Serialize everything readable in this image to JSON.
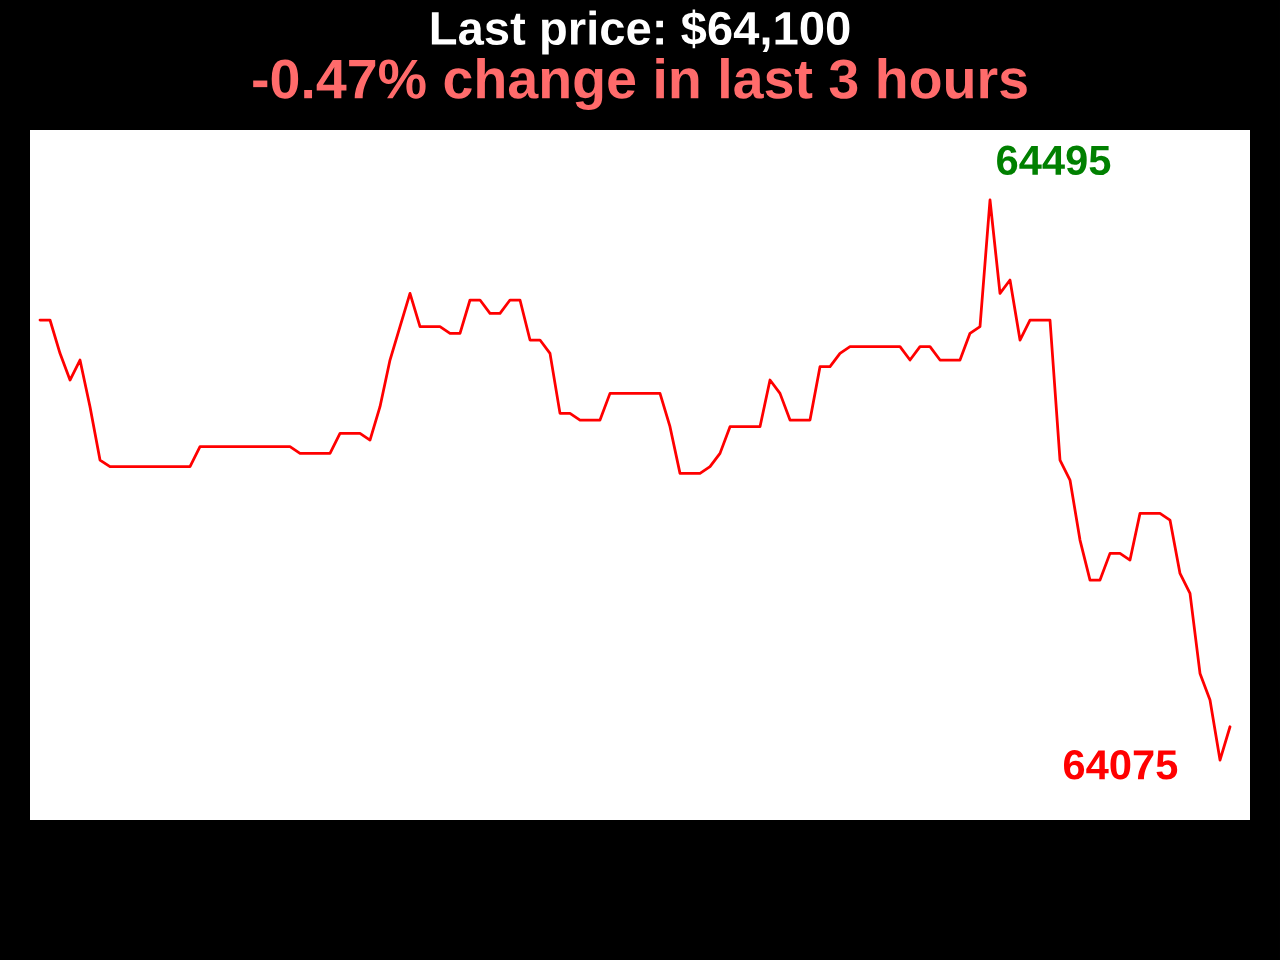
{
  "chart_data": {
    "type": "line",
    "title": "Last price: $64,100",
    "subtitle": "-0.47% change in last 3 hours",
    "categories": [
      null,
      null,
      null,
      null,
      null,
      null,
      null,
      null,
      null,
      null,
      null,
      null,
      null,
      null,
      null,
      null,
      null,
      null,
      null,
      null,
      null,
      null,
      null,
      null,
      null,
      null,
      null,
      null,
      null,
      null,
      null,
      null,
      null,
      null,
      null,
      null,
      null,
      null,
      null,
      null,
      null,
      null,
      null,
      null,
      null,
      null,
      null,
      null,
      null,
      null,
      null,
      null,
      null,
      null,
      null,
      null,
      null,
      null,
      null,
      null,
      null,
      null,
      null,
      null,
      null,
      null,
      null,
      null,
      null,
      null,
      null,
      null,
      null,
      null,
      null,
      null,
      null,
      null,
      null,
      null,
      null,
      null,
      null,
      null,
      null,
      null,
      null,
      null,
      null,
      null,
      null,
      null,
      null,
      null,
      null,
      null,
      null,
      null,
      null,
      null,
      null,
      null,
      null,
      null,
      null,
      null,
      null,
      null,
      null,
      null,
      null,
      null,
      null,
      null,
      null,
      null,
      null,
      null,
      null,
      null
    ],
    "values": [
      64405,
      64405,
      64380,
      64360,
      64375,
      64340,
      64300,
      64295,
      64295,
      64295,
      64295,
      64295,
      64295,
      64295,
      64295,
      64295,
      64310,
      64310,
      64310,
      64310,
      64310,
      64310,
      64310,
      64310,
      64310,
      64310,
      64305,
      64305,
      64305,
      64305,
      64320,
      64320,
      64320,
      64315,
      64340,
      64375,
      64400,
      64425,
      64400,
      64400,
      64400,
      64395,
      64395,
      64420,
      64420,
      64410,
      64410,
      64420,
      64420,
      64390,
      64390,
      64380,
      64335,
      64335,
      64330,
      64330,
      64330,
      64350,
      64350,
      64350,
      64350,
      64350,
      64350,
      64325,
      64290,
      64290,
      64290,
      64295,
      64305,
      64325,
      64325,
      64325,
      64325,
      64360,
      64350,
      64330,
      64330,
      64330,
      64370,
      64370,
      64380,
      64385,
      64385,
      64385,
      64385,
      64385,
      64385,
      64375,
      64385,
      64385,
      64375,
      64375,
      64375,
      64395,
      64400,
      64495,
      64425,
      64435,
      64390,
      64405,
      64405,
      64405,
      64300,
      64285,
      64240,
      64210,
      64210,
      64230,
      64230,
      64225,
      64260,
      64260,
      64260,
      64255,
      64215,
      64200,
      64140,
      64120,
      64075,
      64100
    ],
    "value_labels": [
      null,
      null,
      null,
      null,
      null,
      null,
      null,
      null,
      null,
      null,
      null,
      null,
      null,
      null,
      null,
      null,
      null,
      null,
      null,
      null,
      null,
      null,
      null,
      null,
      null,
      null,
      null,
      null,
      null,
      null,
      null,
      null,
      null,
      null,
      null,
      null,
      null,
      null,
      null,
      null,
      null,
      null,
      null,
      null,
      null,
      null,
      null,
      null,
      null,
      null,
      null,
      null,
      null,
      null,
      null,
      null,
      null,
      null,
      null,
      null,
      null,
      null,
      null,
      null,
      null,
      null,
      null,
      null,
      null,
      null,
      null,
      null,
      null,
      null,
      null,
      null,
      null,
      null,
      null,
      null,
      null,
      null,
      null,
      null,
      null,
      null,
      null,
      null,
      null,
      null,
      null,
      null,
      null,
      null,
      null,
      "64495",
      null,
      null,
      null,
      null,
      null,
      null,
      null,
      null,
      null,
      null,
      null,
      null,
      null,
      null,
      null,
      null,
      null,
      null,
      null,
      null,
      null,
      null,
      "64075",
      null
    ],
    "color": "#ff0000"
  }
}
